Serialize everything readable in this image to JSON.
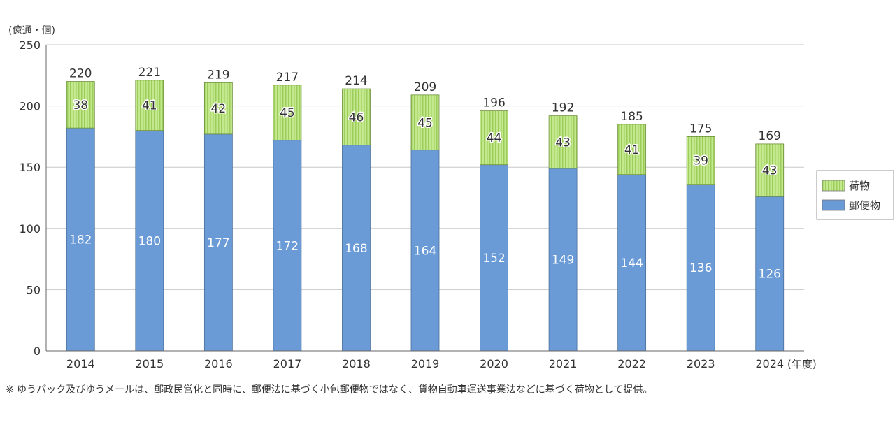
{
  "chart_data": {
    "type": "bar",
    "stacked": true,
    "unit_label": "(億通・個)",
    "x_unit_label": "(年度)",
    "categories": [
      "2014",
      "2015",
      "2016",
      "2017",
      "2018",
      "2019",
      "2020",
      "2021",
      "2022",
      "2023",
      "2024"
    ],
    "series": [
      {
        "name": "郵便物",
        "color": "#6a9bd6",
        "values": [
          182,
          180,
          177,
          172,
          168,
          164,
          152,
          149,
          144,
          136,
          126
        ]
      },
      {
        "name": "荷物",
        "color": "#b8e07e",
        "values": [
          38,
          41,
          42,
          45,
          46,
          45,
          44,
          43,
          41,
          39,
          43
        ]
      }
    ],
    "totals": [
      220,
      221,
      219,
      217,
      214,
      209,
      196,
      192,
      185,
      175,
      169
    ],
    "ylim": [
      0,
      250
    ],
    "yticks": [
      0,
      50,
      100,
      150,
      200,
      250
    ],
    "grid": true,
    "legend_position": "right",
    "legend_order": [
      "荷物",
      "郵便物"
    ]
  },
  "footnote": "※ ゆうパック及びゆうメールは、郵政民営化と同時に、郵便法に基づく小包郵便物ではなく、貨物自動車運送事業法などに基づく荷物として提供。"
}
